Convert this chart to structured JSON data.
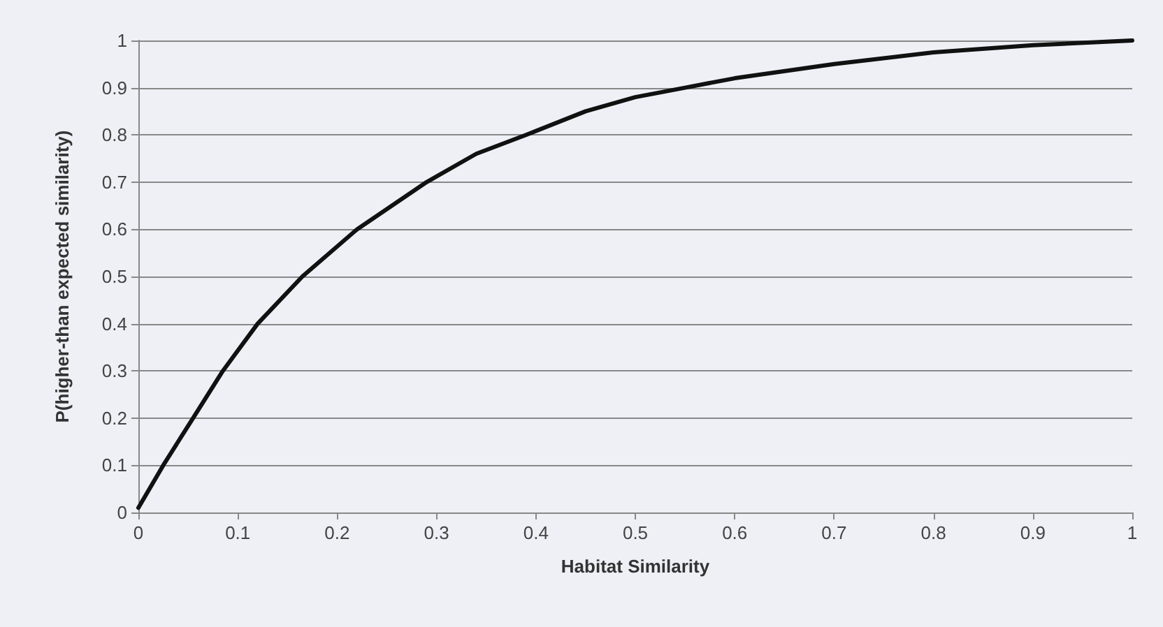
{
  "chart_data": {
    "type": "line",
    "xlabel": "Habitat Similarity",
    "ylabel": "P(higher-than expected similarity)",
    "x": [
      0,
      0.025,
      0.055,
      0.085,
      0.12,
      0.165,
      0.22,
      0.29,
      0.34,
      0.39,
      0.45,
      0.5,
      0.55,
      0.6,
      0.7,
      0.8,
      0.9,
      1
    ],
    "series": [
      {
        "color": "#111111",
        "values": [
          0.01,
          0.1,
          0.2,
          0.3,
          0.4,
          0.5,
          0.6,
          0.7,
          0.76,
          0.8,
          0.85,
          0.88,
          0.9,
          0.92,
          0.95,
          0.975,
          0.99,
          1
        ]
      }
    ],
    "xlim": [
      0,
      1
    ],
    "xticks": [
      0,
      0.1,
      0.2,
      0.3,
      0.4,
      0.5,
      0.6,
      0.7,
      0.8,
      0.9,
      1
    ],
    "ylim": [
      0,
      1
    ],
    "yticks": [
      0,
      0.1,
      0.2,
      0.3,
      0.4,
      0.5,
      0.6,
      0.7,
      0.8,
      0.9,
      1
    ],
    "grid": "y",
    "marker": "none",
    "line_style": "solid"
  }
}
